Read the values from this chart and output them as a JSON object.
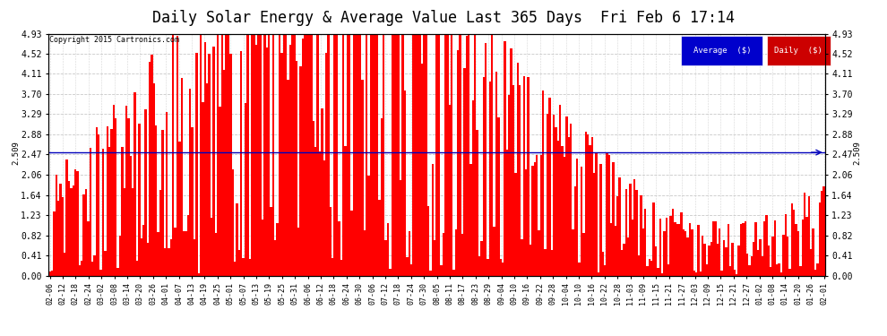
{
  "title": "Daily Solar Energy & Average Value Last 365 Days  Fri Feb 6 17:14",
  "copyright": "Copyright 2015 Cartronics.com",
  "average_value": 2.509,
  "average_label": "2.509",
  "yticks": [
    0.0,
    0.41,
    0.82,
    1.23,
    1.64,
    2.06,
    2.47,
    2.88,
    3.29,
    3.7,
    4.11,
    4.52,
    4.93
  ],
  "ylim": [
    0.0,
    4.93
  ],
  "bar_color": "#FF0000",
  "average_line_color": "#0000BB",
  "background_color": "#FFFFFF",
  "grid_color": "#BBBBBB",
  "title_fontsize": 12,
  "legend_avg_bg": "#0000CC",
  "legend_daily_bg": "#CC0000",
  "xtick_labels": [
    "02-06",
    "02-12",
    "02-18",
    "02-24",
    "03-02",
    "03-08",
    "03-14",
    "03-20",
    "03-26",
    "04-01",
    "04-07",
    "04-13",
    "04-19",
    "04-25",
    "05-01",
    "05-07",
    "05-13",
    "05-19",
    "05-25",
    "05-31",
    "06-06",
    "06-12",
    "06-18",
    "06-24",
    "06-30",
    "07-06",
    "07-12",
    "07-18",
    "07-24",
    "07-30",
    "08-05",
    "08-11",
    "08-17",
    "08-23",
    "08-29",
    "09-04",
    "09-10",
    "09-16",
    "09-22",
    "09-28",
    "10-04",
    "10-10",
    "10-16",
    "10-22",
    "10-28",
    "11-03",
    "11-09",
    "11-15",
    "11-21",
    "11-27",
    "12-03",
    "12-09",
    "12-15",
    "12-21",
    "12-27",
    "01-02",
    "01-08",
    "01-14",
    "01-20",
    "01-26",
    "02-01"
  ]
}
